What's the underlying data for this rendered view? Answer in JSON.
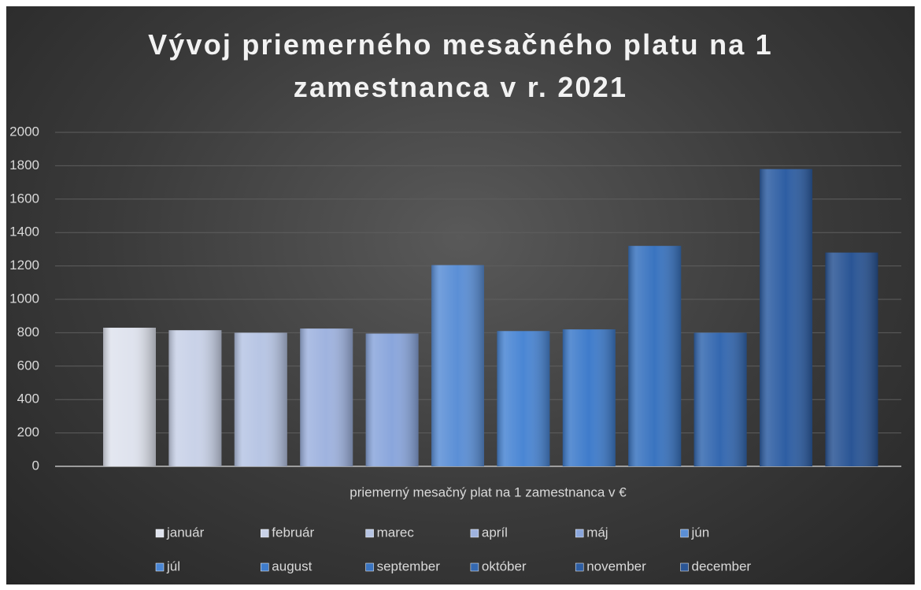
{
  "chart_data": {
    "type": "bar",
    "title": "Vývoj priemerného mesačného platu na 1 zamestnanca v r. 2021",
    "categories": [
      "priemerný mesačný plat na 1 zamestnanca v €"
    ],
    "series": [
      {
        "name": "január",
        "color": "#dfe3ee",
        "values": [
          830
        ]
      },
      {
        "name": "február",
        "color": "#c9d2e8",
        "values": [
          815
        ]
      },
      {
        "name": "marec",
        "color": "#b7c5e4",
        "values": [
          800
        ]
      },
      {
        "name": "apríl",
        "color": "#9fb3df",
        "values": [
          825
        ]
      },
      {
        "name": "máj",
        "color": "#8aa6dc",
        "values": [
          795
        ]
      },
      {
        "name": "jún",
        "color": "#5b8fd6",
        "values": [
          1205
        ]
      },
      {
        "name": "júl",
        "color": "#4a86d4",
        "values": [
          810
        ]
      },
      {
        "name": "august",
        "color": "#3f7ccb",
        "values": [
          820
        ]
      },
      {
        "name": "september",
        "color": "#3a74c0",
        "values": [
          1320
        ]
      },
      {
        "name": "október",
        "color": "#3468b0",
        "values": [
          800
        ]
      },
      {
        "name": "november",
        "color": "#2e5ea3",
        "values": [
          1780
        ]
      },
      {
        "name": "december",
        "color": "#2a5595",
        "values": [
          1280
        ]
      }
    ],
    "ylim": [
      0,
      2000
    ],
    "yticks": [
      0,
      200,
      400,
      600,
      800,
      1000,
      1200,
      1400,
      1600,
      1800,
      2000
    ],
    "grid": true,
    "legend": "bottom"
  }
}
